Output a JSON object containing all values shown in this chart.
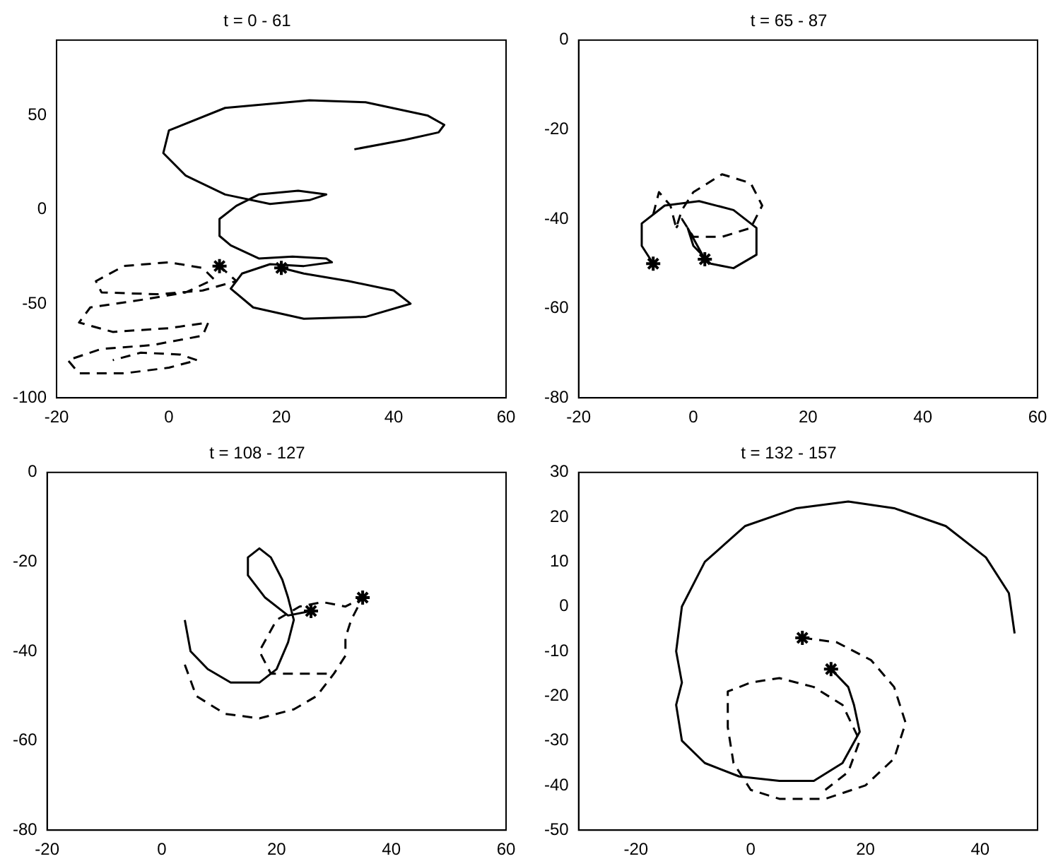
{
  "chart_data": [
    {
      "type": "line",
      "title": "t = 0 - 61",
      "xlim": [
        -20,
        60
      ],
      "ylim": [
        -100,
        90
      ],
      "xticks": [
        -20,
        0,
        20,
        40,
        60
      ],
      "yticks": [
        -100,
        -50,
        0,
        50
      ],
      "grid": false,
      "legend": false,
      "series": [
        {
          "color": "#000000",
          "line_style": "solid",
          "marker": "none",
          "x": [
            33,
            42,
            48,
            49,
            46,
            35,
            25,
            10,
            0,
            -1,
            3,
            10,
            18,
            25,
            28,
            23,
            16,
            12,
            9,
            9,
            11,
            16,
            22,
            28,
            29,
            24,
            18,
            13,
            11,
            15,
            24,
            35,
            43,
            40,
            32,
            24,
            20
          ],
          "values": [
            32,
            37,
            41,
            45,
            50,
            57,
            58,
            54,
            42,
            30,
            18,
            8,
            3,
            5,
            8,
            10,
            8,
            2,
            -5,
            -14,
            -19,
            -26,
            -25,
            -26,
            -28,
            -30,
            -29,
            -34,
            -42,
            -52,
            -58,
            -57,
            -50,
            -43,
            -38,
            -34,
            -31
          ]
        },
        {
          "color": "#000000",
          "line_style": "dashed",
          "marker": "none",
          "x": [
            9,
            12,
            6,
            -2,
            -12,
            -13,
            -8,
            0,
            6,
            8,
            3,
            -5,
            -14,
            -16,
            -10,
            0,
            7,
            6,
            -3,
            -12,
            -18,
            -16,
            -8,
            0,
            5,
            2,
            -5,
            -10
          ],
          "values": [
            -30,
            -38,
            -43,
            -45,
            -44,
            -38,
            -30,
            -28,
            -31,
            -37,
            -44,
            -48,
            -52,
            -60,
            -65,
            -63,
            -60,
            -67,
            -72,
            -74,
            -80,
            -87,
            -87,
            -84,
            -80,
            -77,
            -76,
            -80
          ]
        },
        {
          "type": "scatter",
          "color": "#000000",
          "marker": "cross",
          "x": [
            20,
            9
          ],
          "values": [
            -31,
            -30
          ]
        }
      ]
    },
    {
      "type": "line",
      "title": "t = 65 - 87",
      "xlim": [
        -20,
        60
      ],
      "ylim": [
        -80,
        0
      ],
      "xticks": [
        -20,
        0,
        20,
        40,
        60
      ],
      "yticks": [
        -80,
        -60,
        -40,
        -20,
        0
      ],
      "grid": false,
      "legend": false,
      "series": [
        {
          "color": "#000000",
          "line_style": "solid",
          "marker": "none",
          "x": [
            -7,
            -9,
            -9,
            -5,
            1,
            7,
            11,
            11,
            7,
            3,
            0,
            -1,
            2
          ],
          "values": [
            -50,
            -46,
            -41,
            -37,
            -36,
            -38,
            -42,
            -48,
            -51,
            -50,
            -46,
            -42,
            -49
          ]
        },
        {
          "color": "#000000",
          "line_style": "dashed",
          "marker": "none",
          "x": [
            -7,
            -6,
            -4,
            -3,
            -2,
            0,
            5,
            10,
            12,
            10,
            5,
            0,
            -2,
            -3
          ],
          "values": [
            -39,
            -34,
            -37,
            -42,
            -38,
            -34,
            -30,
            -32,
            -37,
            -42,
            -44,
            -44,
            -40,
            -42
          ]
        },
        {
          "type": "scatter",
          "color": "#000000",
          "marker": "cross",
          "x": [
            -7,
            2
          ],
          "values": [
            -50,
            -49
          ]
        }
      ]
    },
    {
      "type": "line",
      "title": "t = 108 - 127",
      "xlim": [
        -20,
        60
      ],
      "ylim": [
        -80,
        0
      ],
      "xticks": [
        -20,
        0,
        20,
        40,
        60
      ],
      "yticks": [
        -80,
        -60,
        -40,
        -20,
        0
      ],
      "grid": false,
      "legend": false,
      "series": [
        {
          "color": "#000000",
          "line_style": "solid",
          "marker": "none",
          "x": [
            4,
            5,
            8,
            12,
            17,
            20,
            22,
            23,
            22,
            21,
            19,
            17,
            15,
            15,
            18,
            22,
            26
          ],
          "values": [
            -33,
            -40,
            -44,
            -47,
            -47,
            -44,
            -38,
            -33,
            -28,
            -24,
            -19,
            -17,
            -19,
            -23,
            -28,
            -32,
            -31
          ]
        },
        {
          "color": "#000000",
          "line_style": "dashed",
          "marker": "none",
          "x": [
            4,
            6,
            11,
            17,
            23,
            27,
            30,
            32,
            32,
            33,
            35,
            32,
            28,
            24,
            20,
            17,
            19,
            25,
            30
          ],
          "values": [
            -43,
            -50,
            -54,
            -55,
            -53,
            -50,
            -45,
            -41,
            -37,
            -33,
            -28,
            -30,
            -29,
            -30,
            -33,
            -40,
            -45,
            -45,
            -45
          ]
        },
        {
          "type": "scatter",
          "color": "#000000",
          "marker": "cross",
          "x": [
            26,
            35
          ],
          "values": [
            -31,
            -28
          ]
        }
      ]
    },
    {
      "type": "line",
      "title": "t = 132 - 157",
      "xlim": [
        -30,
        50
      ],
      "ylim": [
        -50,
        30
      ],
      "xticks": [
        -20,
        0,
        20,
        40
      ],
      "yticks": [
        -50,
        -40,
        -30,
        -20,
        -10,
        0,
        10,
        20,
        30
      ],
      "grid": false,
      "legend": false,
      "series": [
        {
          "color": "#000000",
          "line_style": "solid",
          "marker": "none",
          "x": [
            46,
            45,
            41,
            34,
            25,
            17,
            8,
            -1,
            -8,
            -12,
            -13,
            -12,
            -13,
            -12,
            -8,
            -2,
            5,
            11,
            16,
            19,
            18,
            17,
            14
          ],
          "values": [
            -6,
            3,
            11,
            18,
            22,
            23.5,
            22,
            18,
            10,
            0,
            -10,
            -17,
            -22,
            -30,
            -35,
            -38,
            -39,
            -39,
            -35,
            -28,
            -22,
            -18,
            -14
          ]
        },
        {
          "color": "#000000",
          "line_style": "dashed",
          "marker": "none",
          "x": [
            9,
            15,
            21,
            25,
            27,
            25,
            20,
            13,
            5,
            0,
            -3,
            -4,
            -4,
            0,
            5,
            11,
            16,
            19,
            17,
            13
          ],
          "values": [
            -7,
            -8,
            -12,
            -18,
            -26,
            -34,
            -40,
            -43,
            -43,
            -41,
            -35,
            -27,
            -19,
            -17,
            -16,
            -18,
            -22,
            -30,
            -37,
            -41
          ]
        },
        {
          "type": "scatter",
          "color": "#000000",
          "marker": "cross",
          "x": [
            9,
            14
          ],
          "values": [
            -7,
            -14
          ]
        }
      ]
    }
  ]
}
